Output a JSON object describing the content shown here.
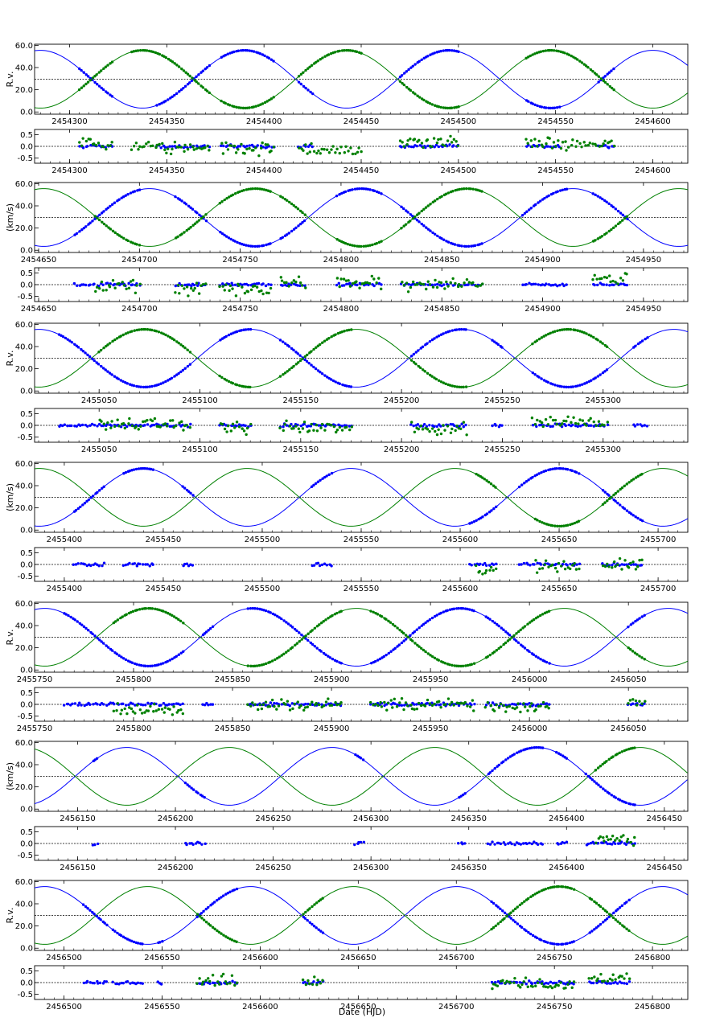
{
  "figure": {
    "xlabel": "Date (HJD)",
    "rv_ylabels": [
      "R.v.",
      "(km/s)",
      "R.v.",
      "(km/s)",
      "R.v.",
      "(km/s)",
      "R.v."
    ],
    "colors": {
      "primary": "#0000ff",
      "secondary": "#008000",
      "zero_line": "#000000"
    }
  },
  "chart_data": [
    {
      "type": "line+scatter",
      "panel": "rv",
      "row": 1,
      "ylabel": "R.v.",
      "xlim": [
        2454282,
        2454618
      ],
      "ylim": [
        -2,
        61
      ],
      "yticks": [
        0,
        20,
        40,
        60
      ],
      "ytick_labels": [
        "0.0",
        "20.0",
        "40.0",
        "60.0"
      ],
      "xticks": [
        2454300,
        2454350,
        2454400,
        2454450,
        2454500,
        2454550,
        2454600
      ],
      "xtick_labels": [
        "2454300",
        "2454350",
        "2454400",
        "2454450",
        "2454500",
        "2454550",
        "2454600"
      ],
      "systemic_velocity": 29.5,
      "model": {
        "period_days": 105.0,
        "amplitude_kms": 26.0,
        "primary_max_hjd": 2454390,
        "secondary_max_hjd": 2454337.5
      },
      "observed_segments": [
        {
          "series": "primary",
          "x_ranges": [
            [
              2454305,
              2454322
            ],
            [
              2454345,
              2454372
            ],
            [
              2454378,
              2454405
            ],
            [
              2454418,
              2454425
            ],
            [
              2454470,
              2454500
            ],
            [
              2454535,
              2454552
            ],
            [
              2454572,
              2454580
            ]
          ]
        },
        {
          "series": "secondary",
          "x_ranges": [
            [
              2454305,
              2454322
            ],
            [
              2454332,
              2454372
            ],
            [
              2454378,
              2454405
            ],
            [
              2454418,
              2454450
            ],
            [
              2454470,
              2454500
            ],
            [
              2454535,
              2454580
            ]
          ]
        }
      ],
      "series": [
        {
          "name": "primary",
          "color": "#0000ff"
        },
        {
          "name": "secondary",
          "color": "#008000"
        }
      ]
    },
    {
      "type": "scatter",
      "panel": "residual",
      "row": 1,
      "xlim": [
        2454282,
        2454618
      ],
      "ylim": [
        -0.72,
        0.72
      ],
      "yticks": [
        -0.5,
        0,
        0.5
      ],
      "ytick_labels": [
        "-0.5",
        "0.0",
        "0.5"
      ],
      "xticks": [
        2454300,
        2454350,
        2454400,
        2454450,
        2454500,
        2454550,
        2454600
      ],
      "xtick_labels": [
        "2454300",
        "2454350",
        "2454400",
        "2454450",
        "2454500",
        "2454550",
        "2454600"
      ],
      "zero_line": 0.0
    },
    {
      "type": "line+scatter",
      "panel": "rv",
      "row": 2,
      "ylabel": "(km/s)",
      "xlim": [
        2454648,
        2454972
      ],
      "ylim": [
        -2,
        61
      ],
      "yticks": [
        0,
        20,
        40,
        60
      ],
      "ytick_labels": [
        "0.0",
        "20.0",
        "40.0",
        "60.0"
      ],
      "xticks": [
        2454650,
        2454700,
        2454750,
        2454800,
        2454850,
        2454900,
        2454950
      ],
      "xtick_labels": [
        "2454650",
        "2454700",
        "2454750",
        "2454800",
        "2454850",
        "2454900",
        "2454950"
      ],
      "systemic_velocity": 29.5,
      "model": {
        "period_days": 105.0,
        "amplitude_kms": 26.0,
        "primary_max_hjd": 2454390,
        "secondary_max_hjd": 2454337.5
      },
      "observed_segments": [
        {
          "series": "primary",
          "x_ranges": [
            [
              2454668,
              2454700
            ],
            [
              2454718,
              2454733
            ],
            [
              2454740,
              2454765
            ],
            [
              2454770,
              2454782
            ],
            [
              2454798,
              2454820
            ],
            [
              2454830,
              2454870
            ],
            [
              2454890,
              2454912
            ],
            [
              2454925,
              2454942
            ]
          ]
        },
        {
          "series": "secondary",
          "x_ranges": [
            [
              2454678,
              2454700
            ],
            [
              2454718,
              2454733
            ],
            [
              2454740,
              2454765
            ],
            [
              2454770,
              2454782
            ],
            [
              2454798,
              2454820
            ],
            [
              2454830,
              2454870
            ],
            [
              2454925,
              2454942
            ]
          ]
        }
      ],
      "series": [
        {
          "name": "primary",
          "color": "#0000ff"
        },
        {
          "name": "secondary",
          "color": "#008000"
        }
      ]
    },
    {
      "type": "scatter",
      "panel": "residual",
      "row": 2,
      "xlim": [
        2454648,
        2454972
      ],
      "ylim": [
        -0.72,
        0.72
      ],
      "yticks": [
        -0.5,
        0,
        0.5
      ],
      "ytick_labels": [
        "-0.5",
        "0.0",
        "0.5"
      ],
      "xticks": [
        2454650,
        2454700,
        2454750,
        2454800,
        2454850,
        2454900,
        2454950
      ],
      "xtick_labels": [
        "2454650",
        "2454700",
        "2454750",
        "2454800",
        "2454850",
        "2454900",
        "2454950"
      ],
      "zero_line": 0.0
    },
    {
      "type": "line+scatter",
      "panel": "rv",
      "row": 3,
      "ylabel": "R.v.",
      "xlim": [
        2455018,
        2455342
      ],
      "ylim": [
        -2,
        61
      ],
      "yticks": [
        0,
        20,
        40,
        60
      ],
      "ytick_labels": [
        "0.0",
        "20.0",
        "40.0",
        "60.0"
      ],
      "xticks": [
        2455050,
        2455100,
        2455150,
        2455200,
        2455250,
        2455300
      ],
      "xtick_labels": [
        "2455050",
        "2455100",
        "2455150",
        "2455200",
        "2455250",
        "2455300"
      ],
      "systemic_velocity": 29.5,
      "model": {
        "period_days": 105.0,
        "amplitude_kms": 26.0,
        "primary_max_hjd": 2454390,
        "secondary_max_hjd": 2454337.5
      },
      "observed_segments": [
        {
          "series": "primary",
          "x_ranges": [
            [
              2455030,
              2455095
            ],
            [
              2455110,
              2455125
            ],
            [
              2455140,
              2455175
            ],
            [
              2455205,
              2455232
            ],
            [
              2455245,
              2455250
            ],
            [
              2455265,
              2455302
            ],
            [
              2455315,
              2455322
            ]
          ]
        },
        {
          "series": "secondary",
          "x_ranges": [
            [
              2455050,
              2455095
            ],
            [
              2455110,
              2455125
            ],
            [
              2455140,
              2455175
            ],
            [
              2455205,
              2455232
            ],
            [
              2455265,
              2455302
            ]
          ]
        }
      ],
      "series": [
        {
          "name": "primary",
          "color": "#0000ff"
        },
        {
          "name": "secondary",
          "color": "#008000"
        }
      ]
    },
    {
      "type": "scatter",
      "panel": "residual",
      "row": 3,
      "xlim": [
        2455018,
        2455342
      ],
      "ylim": [
        -0.72,
        0.72
      ],
      "yticks": [
        -0.5,
        0,
        0.5
      ],
      "ytick_labels": [
        "-0.5",
        "0.0",
        "0.5"
      ],
      "xticks": [
        2455050,
        2455100,
        2455150,
        2455200,
        2455250,
        2455300
      ],
      "xtick_labels": [
        "2455050",
        "2455100",
        "2455150",
        "2455200",
        "2455250",
        "2455300"
      ],
      "zero_line": 0.0
    },
    {
      "type": "line+scatter",
      "panel": "rv",
      "row": 4,
      "ylabel": "(km/s)",
      "xlim": [
        2455385,
        2455715
      ],
      "ylim": [
        -2,
        61
      ],
      "yticks": [
        0,
        20,
        40,
        60
      ],
      "ytick_labels": [
        "0.0",
        "20.0",
        "40.0",
        "60.0"
      ],
      "xticks": [
        2455400,
        2455450,
        2455500,
        2455550,
        2455600,
        2455650,
        2455700
      ],
      "xtick_labels": [
        "2455400",
        "2455450",
        "2455500",
        "2455550",
        "2455600",
        "2455650",
        "2455700"
      ],
      "systemic_velocity": 29.5,
      "model": {
        "period_days": 105.0,
        "amplitude_kms": 26.0,
        "primary_max_hjd": 2454390,
        "secondary_max_hjd": 2454337.5
      },
      "observed_segments": [
        {
          "series": "primary",
          "x_ranges": [
            [
              2455405,
              2455420
            ],
            [
              2455430,
              2455445
            ],
            [
              2455460,
              2455465
            ],
            [
              2455525,
              2455535
            ],
            [
              2455605,
              2455618
            ],
            [
              2455630,
              2455660
            ],
            [
              2455672,
              2455692
            ]
          ]
        },
        {
          "series": "secondary",
          "x_ranges": [
            [
              2455608,
              2455618
            ],
            [
              2455638,
              2455660
            ],
            [
              2455672,
              2455692
            ]
          ]
        }
      ],
      "series": [
        {
          "name": "primary",
          "color": "#0000ff"
        },
        {
          "name": "secondary",
          "color": "#008000"
        }
      ]
    },
    {
      "type": "scatter",
      "panel": "residual",
      "row": 4,
      "xlim": [
        2455385,
        2455715
      ],
      "ylim": [
        -0.72,
        0.72
      ],
      "yticks": [
        -0.5,
        0,
        0.5
      ],
      "ytick_labels": [
        "-0.5",
        "0.0",
        "0.5"
      ],
      "xticks": [
        2455400,
        2455450,
        2455500,
        2455550,
        2455600,
        2455650,
        2455700
      ],
      "xtick_labels": [
        "2455400",
        "2455450",
        "2455500",
        "2455550",
        "2455600",
        "2455650",
        "2455700"
      ],
      "zero_line": 0.0
    },
    {
      "type": "line+scatter",
      "panel": "rv",
      "row": 5,
      "ylabel": "R.v.",
      "xlim": [
        2455750,
        2456080
      ],
      "ylim": [
        -2,
        61
      ],
      "yticks": [
        0,
        20,
        40,
        60
      ],
      "ytick_labels": [
        "0.0",
        "20.0",
        "40.0",
        "60.0"
      ],
      "xticks": [
        2455750,
        2455800,
        2455850,
        2455900,
        2455950,
        2456000,
        2456050
      ],
      "xtick_labels": [
        "2455750",
        "2455800",
        "2455850",
        "2455900",
        "2455950",
        "2456000",
        "2456050"
      ],
      "systemic_velocity": 29.5,
      "model": {
        "period_days": 105.0,
        "amplitude_kms": 26.0,
        "primary_max_hjd": 2454390,
        "secondary_max_hjd": 2454337.5
      },
      "observed_segments": [
        {
          "series": "primary",
          "x_ranges": [
            [
              2455765,
              2455825
            ],
            [
              2455835,
              2455840
            ],
            [
              2455858,
              2455905
            ],
            [
              2455920,
              2455972
            ],
            [
              2455978,
              2456010
            ],
            [
              2456050,
              2456058
            ]
          ]
        },
        {
          "series": "secondary",
          "x_ranges": [
            [
              2455790,
              2455825
            ],
            [
              2455858,
              2455905
            ],
            [
              2455920,
              2455972
            ],
            [
              2455978,
              2456010
            ],
            [
              2456050,
              2456058
            ]
          ]
        }
      ],
      "series": [
        {
          "name": "primary",
          "color": "#0000ff"
        },
        {
          "name": "secondary",
          "color": "#008000"
        }
      ]
    },
    {
      "type": "scatter",
      "panel": "residual",
      "row": 5,
      "xlim": [
        2455750,
        2456080
      ],
      "ylim": [
        -0.72,
        0.72
      ],
      "yticks": [
        -0.5,
        0,
        0.5
      ],
      "ytick_labels": [
        "-0.5",
        "0.0",
        "0.5"
      ],
      "xticks": [
        2455750,
        2455800,
        2455850,
        2455900,
        2455950,
        2456000,
        2456050
      ],
      "xtick_labels": [
        "2455750",
        "2455800",
        "2455850",
        "2455900",
        "2455950",
        "2456000",
        "2456050"
      ],
      "zero_line": 0.0
    },
    {
      "type": "line+scatter",
      "panel": "rv",
      "row": 6,
      "ylabel": "(km/s)",
      "xlim": [
        2456128,
        2456462
      ],
      "ylim": [
        -2,
        61
      ],
      "yticks": [
        0,
        20,
        40,
        60
      ],
      "ytick_labels": [
        "0.0",
        "20.0",
        "40.0",
        "60.0"
      ],
      "xticks": [
        2456150,
        2456200,
        2456250,
        2456300,
        2456350,
        2456400,
        2456450
      ],
      "xtick_labels": [
        "2456150",
        "2456200",
        "2456250",
        "2456300",
        "2456350",
        "2456400",
        "2456450"
      ],
      "systemic_velocity": 29.5,
      "model": {
        "period_days": 105.0,
        "amplitude_kms": 26.0,
        "primary_max_hjd": 2454390,
        "secondary_max_hjd": 2454337.5
      },
      "observed_segments": [
        {
          "series": "primary",
          "x_ranges": [
            [
              2456158,
              2456160
            ],
            [
              2456205,
              2456215
            ],
            [
              2456292,
              2456296
            ],
            [
              2456345,
              2456348
            ],
            [
              2456360,
              2456388
            ],
            [
              2456395,
              2456400
            ],
            [
              2456410,
              2456435
            ]
          ]
        },
        {
          "series": "secondary",
          "x_ranges": [
            [
              2456415,
              2456435
            ]
          ]
        }
      ],
      "series": [
        {
          "name": "primary",
          "color": "#0000ff"
        },
        {
          "name": "secondary",
          "color": "#008000"
        }
      ]
    },
    {
      "type": "scatter",
      "panel": "residual",
      "row": 6,
      "xlim": [
        2456128,
        2456462
      ],
      "ylim": [
        -0.72,
        0.72
      ],
      "yticks": [
        -0.5,
        0,
        0.5
      ],
      "ytick_labels": [
        "-0.5",
        "0.0",
        "0.5"
      ],
      "xticks": [
        2456150,
        2456200,
        2456250,
        2456300,
        2456350,
        2456400,
        2456450
      ],
      "xtick_labels": [
        "2456150",
        "2456200",
        "2456250",
        "2456300",
        "2456350",
        "2456400",
        "2456450"
      ],
      "zero_line": 0.0
    },
    {
      "type": "line+scatter",
      "panel": "rv",
      "row": 7,
      "ylabel": "R.v.",
      "xlim": [
        2456485,
        2456818
      ],
      "ylim": [
        -2,
        61
      ],
      "yticks": [
        0,
        20,
        40,
        60
      ],
      "ytick_labels": [
        "0.0",
        "20.0",
        "40.0",
        "60.0"
      ],
      "xticks": [
        2456500,
        2456550,
        2456600,
        2456650,
        2456700,
        2456750,
        2456800
      ],
      "xtick_labels": [
        "2456500",
        "2456550",
        "2456600",
        "2456650",
        "2456700",
        "2456750",
        "2456800"
      ],
      "systemic_velocity": 29.5,
      "model": {
        "period_days": 105.0,
        "amplitude_kms": 26.0,
        "primary_max_hjd": 2454390,
        "secondary_max_hjd": 2454337.5
      },
      "observed_segments": [
        {
          "series": "primary",
          "x_ranges": [
            [
              2456510,
              2456522
            ],
            [
              2456525,
              2456540
            ],
            [
              2456548,
              2456550
            ],
            [
              2456568,
              2456588
            ],
            [
              2456622,
              2456632
            ],
            [
              2456718,
              2456760
            ],
            [
              2456768,
              2456788
            ]
          ]
        },
        {
          "series": "secondary",
          "x_ranges": [
            [
              2456568,
              2456588
            ],
            [
              2456622,
              2456632
            ],
            [
              2456718,
              2456760
            ],
            [
              2456768,
              2456788
            ]
          ]
        }
      ],
      "series": [
        {
          "name": "primary",
          "color": "#0000ff"
        },
        {
          "name": "secondary",
          "color": "#008000"
        }
      ]
    },
    {
      "type": "scatter",
      "panel": "residual",
      "row": 7,
      "xlim": [
        2456485,
        2456818
      ],
      "ylim": [
        -0.72,
        0.72
      ],
      "yticks": [
        -0.5,
        0,
        0.5
      ],
      "ytick_labels": [
        "-0.5",
        "0.0",
        "0.5"
      ],
      "xticks": [
        2456500,
        2456550,
        2456600,
        2456650,
        2456700,
        2456750,
        2456800
      ],
      "xtick_labels": [
        "2456500",
        "2456550",
        "2456600",
        "2456650",
        "2456700",
        "2456750",
        "2456800"
      ],
      "zero_line": 0.0
    }
  ]
}
